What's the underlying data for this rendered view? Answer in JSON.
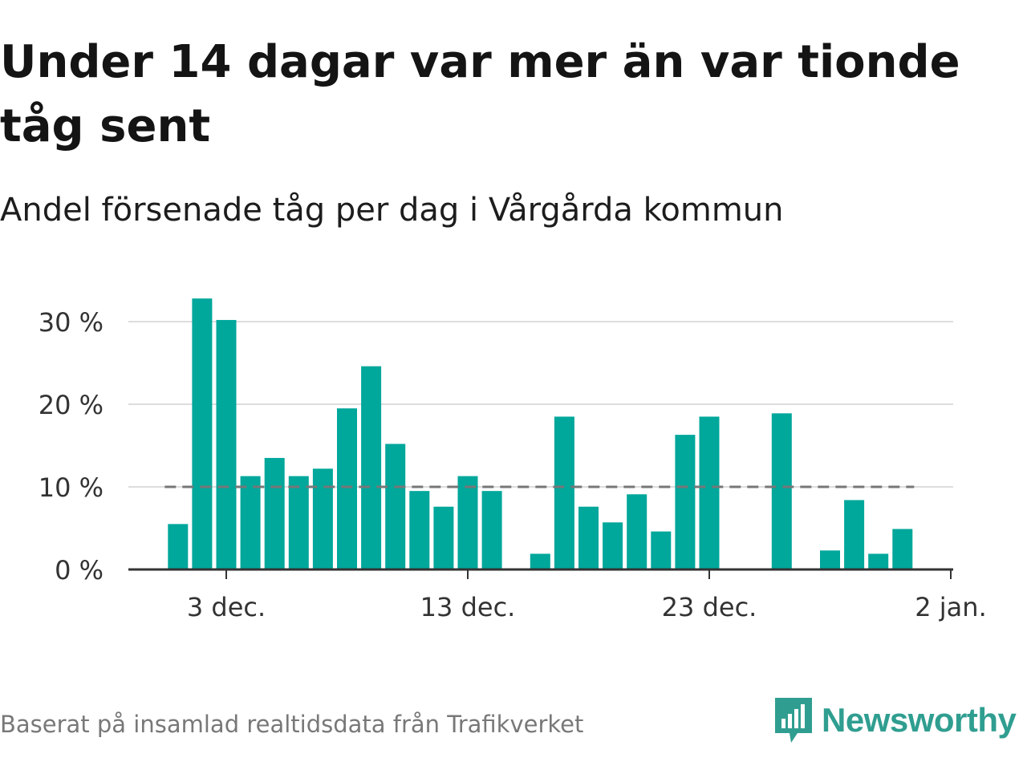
{
  "title": "Under 14 dagar var mer än var tionde tåg sent",
  "subtitle": "Andel försenade tåg per dag i Vårgårda kommun",
  "source": "Baserat på insamlad realtidsdata från Trafikverket",
  "logo": {
    "name": "Newsworthy",
    "icon": "newsworthy-logo-icon",
    "color": "#2f9e90"
  },
  "chart_data": {
    "type": "bar",
    "x_type": "date",
    "x": [
      "2019-12-01",
      "2019-12-02",
      "2019-12-03",
      "2019-12-04",
      "2019-12-05",
      "2019-12-06",
      "2019-12-07",
      "2019-12-08",
      "2019-12-09",
      "2019-12-10",
      "2019-12-11",
      "2019-12-12",
      "2019-12-13",
      "2019-12-14",
      "2019-12-15",
      "2019-12-16",
      "2019-12-17",
      "2019-12-18",
      "2019-12-19",
      "2019-12-20",
      "2019-12-21",
      "2019-12-22",
      "2019-12-23",
      "2019-12-24",
      "2019-12-25",
      "2019-12-26",
      "2019-12-27",
      "2019-12-28",
      "2019-12-29",
      "2019-12-30",
      "2019-12-31"
    ],
    "values": [
      5.5,
      32.8,
      30.2,
      11.3,
      13.5,
      11.3,
      12.2,
      19.5,
      24.6,
      15.2,
      9.5,
      7.6,
      11.3,
      9.5,
      0,
      1.9,
      18.5,
      7.6,
      5.7,
      9.1,
      4.6,
      16.3,
      18.5,
      0,
      0,
      18.9,
      0,
      2.3,
      8.4,
      1.9,
      4.9
    ],
    "ylim": [
      0,
      30
    ],
    "yticks": [
      0,
      10,
      20,
      30
    ],
    "ytick_labels": [
      "0 %",
      "10 %",
      "20 %",
      "30 %"
    ],
    "xticks": [
      "2019-12-03",
      "2019-12-13",
      "2019-12-23",
      "2020-01-02"
    ],
    "xtick_labels": [
      "3 dec.",
      "13 dec.",
      "23 dec.",
      "2 jan."
    ],
    "reference_line": {
      "value": 10,
      "style": "dashed"
    },
    "grid": true,
    "bar_color": "#00a79b",
    "reference_color": "#777777",
    "grid_color": "#dddddd",
    "axis_color": "#333333"
  }
}
